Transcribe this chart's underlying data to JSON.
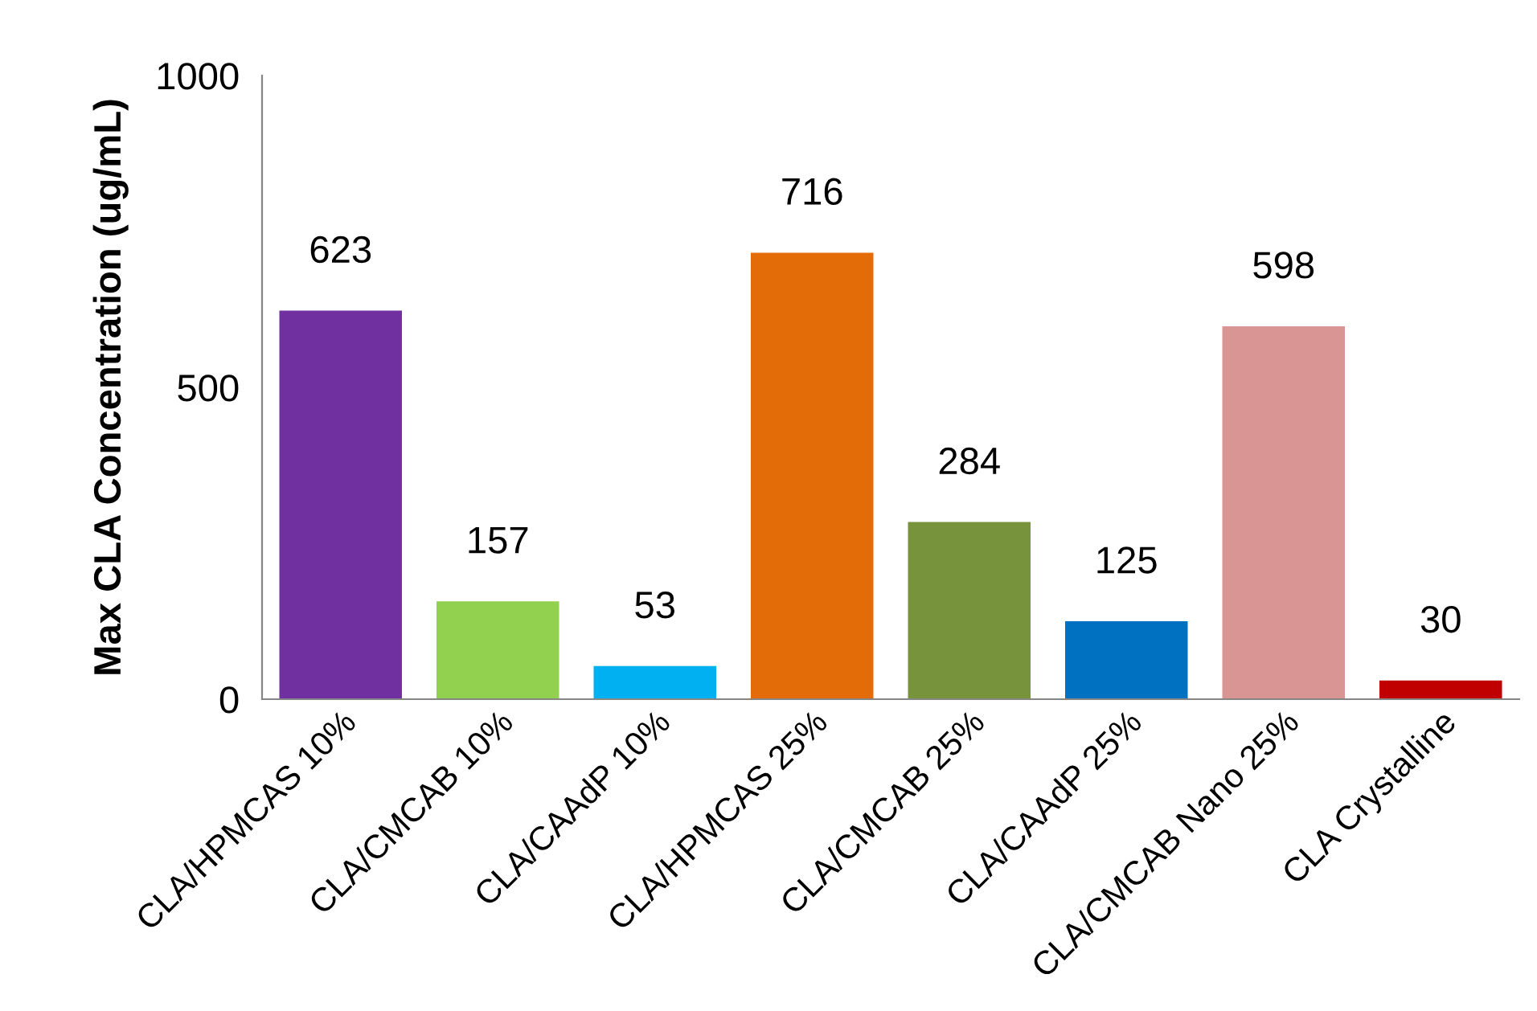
{
  "chart_data": {
    "type": "bar",
    "ylabel": "Max CLA Concentration (ug/mL)",
    "categories": [
      "CLA/HPMCAS 10%",
      "CLA/CMCAB 10%",
      "CLA/CAAdP 10%",
      "CLA/HPMCAS 25%",
      "CLA/CMCAB 25%",
      "CLA/CAAdP 25%",
      "CLA/CMCAB Nano 25%",
      "CLA Crystalline"
    ],
    "values": [
      623,
      157,
      53,
      716,
      284,
      125,
      598,
      30
    ],
    "colors": [
      "#7030a0",
      "#92d050",
      "#00b0f0",
      "#e36c09",
      "#77933c",
      "#0070c0",
      "#d99594",
      "#c00000"
    ],
    "ylim": [
      0,
      1000
    ],
    "yticks": [
      0,
      500,
      1000
    ],
    "data_labels": true,
    "grid": false,
    "legend": false
  }
}
